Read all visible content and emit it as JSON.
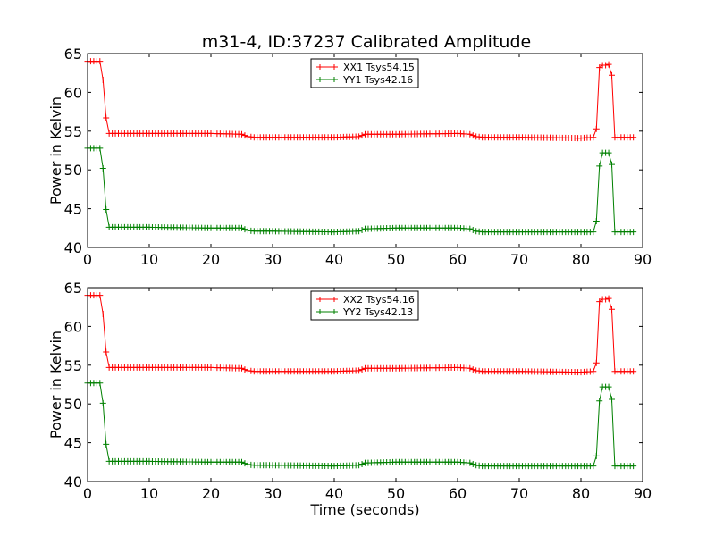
{
  "figure_title": "m31-4, ID:37237 Calibrated Amplitude",
  "chart_data": [
    {
      "type": "line",
      "title": "m31-4, ID:37237 Calibrated Amplitude",
      "xlabel": "",
      "ylabel": "Power in Kelvin",
      "xlim": [
        0,
        90
      ],
      "ylim": [
        40,
        65
      ],
      "xticks": [
        "0",
        "10",
        "20",
        "30",
        "40",
        "50",
        "60",
        "70",
        "80",
        "90"
      ],
      "yticks": [
        "40",
        "45",
        "50",
        "55",
        "60",
        "65"
      ],
      "grid": false,
      "legend_position": "top-center",
      "marker": "plus",
      "series": [
        {
          "name": "XX1 Tsys54.15",
          "color": "#ff0000",
          "x": [
            0,
            0.5,
            1,
            1.5,
            2,
            2.5,
            3,
            3.5,
            4,
            10,
            20,
            25,
            26,
            27,
            30,
            40,
            44,
            45,
            50,
            60,
            62,
            63,
            64,
            70,
            80,
            82,
            82.5,
            83,
            83.5,
            84,
            84.5,
            85,
            85.5,
            86,
            88.5
          ],
          "y": [
            64,
            64,
            64,
            64,
            64,
            61.6,
            56.7,
            54.7,
            54.7,
            54.7,
            54.7,
            54.6,
            54.3,
            54.2,
            54.2,
            54.2,
            54.3,
            54.6,
            54.6,
            54.7,
            54.6,
            54.3,
            54.2,
            54.2,
            54.1,
            54.2,
            55.3,
            63.2,
            63.5,
            63.5,
            63.6,
            62.2,
            54.2,
            54.2,
            54.2
          ]
        },
        {
          "name": "YY1 Tsys42.16",
          "color": "#008000",
          "x": [
            0,
            0.5,
            1,
            1.5,
            2,
            2.5,
            3,
            3.5,
            4,
            10,
            20,
            25,
            26,
            27,
            30,
            40,
            44,
            45,
            50,
            60,
            62,
            63,
            64,
            70,
            80,
            82,
            82.5,
            83,
            83.5,
            84,
            84.5,
            85,
            85.5,
            86,
            88.5
          ],
          "y": [
            52.8,
            52.8,
            52.8,
            52.8,
            52.8,
            50.2,
            44.9,
            42.6,
            42.6,
            42.6,
            42.5,
            42.5,
            42.2,
            42.1,
            42.1,
            42.0,
            42.1,
            42.4,
            42.5,
            42.5,
            42.4,
            42.1,
            42.0,
            42.0,
            42.0,
            42.0,
            43.4,
            50.5,
            52.2,
            52.2,
            52.2,
            50.7,
            42.0,
            42.0,
            42.0
          ]
        }
      ]
    },
    {
      "type": "line",
      "title": "",
      "xlabel": "Time (seconds)",
      "ylabel": "Power in Kelvin",
      "xlim": [
        0,
        90
      ],
      "ylim": [
        40,
        65
      ],
      "xticks": [
        "0",
        "10",
        "20",
        "30",
        "40",
        "50",
        "60",
        "70",
        "80",
        "90"
      ],
      "yticks": [
        "40",
        "45",
        "50",
        "55",
        "60",
        "65"
      ],
      "grid": false,
      "legend_position": "top-center",
      "marker": "plus",
      "series": [
        {
          "name": "XX2 Tsys54.16",
          "color": "#ff0000",
          "x": [
            0,
            0.5,
            1,
            1.5,
            2,
            2.5,
            3,
            3.5,
            4,
            10,
            20,
            25,
            26,
            27,
            30,
            40,
            44,
            45,
            50,
            60,
            62,
            63,
            64,
            70,
            80,
            82,
            82.5,
            83,
            83.5,
            84,
            84.5,
            85,
            85.5,
            86,
            88.5
          ],
          "y": [
            64,
            64,
            64,
            64,
            64,
            61.6,
            56.7,
            54.7,
            54.7,
            54.7,
            54.7,
            54.6,
            54.3,
            54.2,
            54.2,
            54.2,
            54.3,
            54.6,
            54.6,
            54.7,
            54.6,
            54.3,
            54.2,
            54.2,
            54.1,
            54.2,
            55.3,
            63.2,
            63.5,
            63.5,
            63.6,
            62.2,
            54.2,
            54.2,
            54.2
          ]
        },
        {
          "name": "YY2 Tsys42.13",
          "color": "#008000",
          "x": [
            0,
            0.5,
            1,
            1.5,
            2,
            2.5,
            3,
            3.5,
            4,
            10,
            20,
            25,
            26,
            27,
            30,
            40,
            44,
            45,
            50,
            60,
            62,
            63,
            64,
            70,
            80,
            82,
            82.5,
            83,
            83.5,
            84,
            84.5,
            85,
            85.5,
            86,
            88.5
          ],
          "y": [
            52.7,
            52.7,
            52.7,
            52.7,
            52.7,
            50.1,
            44.8,
            42.6,
            42.6,
            42.6,
            42.5,
            42.5,
            42.2,
            42.1,
            42.1,
            42.0,
            42.1,
            42.4,
            42.5,
            42.5,
            42.4,
            42.1,
            42.0,
            42.0,
            42.0,
            42.0,
            43.3,
            50.4,
            52.2,
            52.2,
            52.2,
            50.6,
            42.0,
            42.0,
            42.0
          ]
        }
      ]
    }
  ]
}
